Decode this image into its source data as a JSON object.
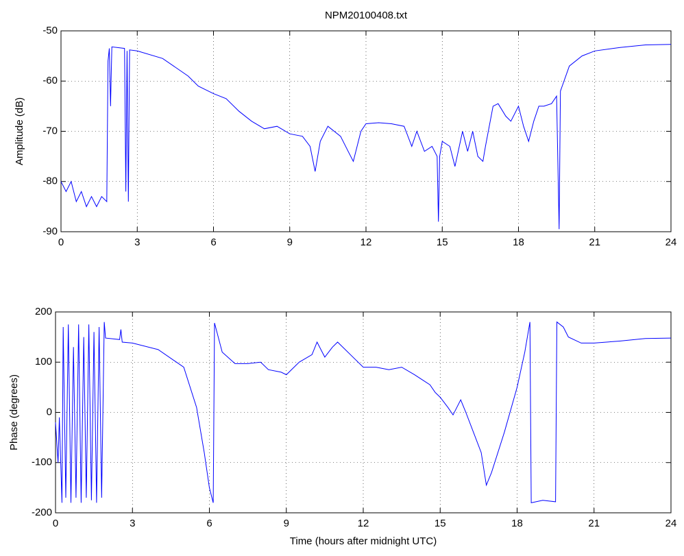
{
  "chart_data": [
    {
      "type": "line",
      "title": "NPM20100408.txt",
      "y_label": "Amplitude (dB)",
      "grid": true,
      "xlim": [
        0,
        24
      ],
      "xticks": [
        0,
        3,
        6,
        9,
        12,
        15,
        18,
        21,
        24
      ],
      "ylim": [
        -90,
        -50
      ],
      "yticks": [
        -90,
        -80,
        -70,
        -60,
        -50
      ],
      "series": [
        {
          "color": "#0000ff",
          "x": [
            0,
            0.2,
            0.4,
            0.6,
            0.8,
            1.0,
            1.2,
            1.4,
            1.6,
            1.8,
            1.85,
            1.9,
            1.95,
            2.0,
            2.2,
            2.5,
            2.55,
            2.6,
            2.65,
            2.7,
            3,
            4,
            5,
            5.4,
            6,
            6.5,
            7,
            7.5,
            8,
            8.5,
            9,
            9.5,
            9.8,
            10,
            10.2,
            10.5,
            11,
            11.3,
            11.5,
            11.8,
            12,
            12.5,
            13,
            13.5,
            13.8,
            14,
            14.3,
            14.6,
            14.8,
            14.85,
            14.9,
            15,
            15.3,
            15.5,
            15.8,
            16,
            16.2,
            16.4,
            16.6,
            16.7,
            17,
            17.2,
            17.5,
            17.7,
            18,
            18.2,
            18.4,
            18.6,
            18.8,
            19,
            19.3,
            19.5,
            19.6,
            19.65,
            20,
            20.5,
            21,
            22,
            23,
            24
          ],
          "values": [
            -80,
            -82,
            -80,
            -84,
            -82,
            -85,
            -83,
            -85,
            -83,
            -84,
            -56,
            -53.5,
            -65,
            -53.2,
            -53.3,
            -53.5,
            -82,
            -54,
            -84,
            -53.8,
            -54,
            -55.5,
            -59,
            -61,
            -62.5,
            -63.5,
            -66,
            -68,
            -69.5,
            -69,
            -70.5,
            -71,
            -73,
            -78,
            -72,
            -69,
            -71,
            -74,
            -76,
            -70,
            -68.5,
            -68.3,
            -68.5,
            -69,
            -73,
            -70,
            -74,
            -73,
            -75,
            -88,
            -75,
            -72,
            -73,
            -77,
            -70,
            -74,
            -70,
            -75,
            -76,
            -73,
            -65,
            -64.5,
            -67,
            -68,
            -65,
            -69,
            -72,
            -68,
            -65,
            -65,
            -64.5,
            -63,
            -89.5,
            -62,
            -57,
            -55,
            -54,
            -53.3,
            -52.8,
            -52.7
          ]
        }
      ]
    },
    {
      "type": "line",
      "x_label": "Time (hours after midnight UTC)",
      "y_label": "Phase (degrees)",
      "grid": true,
      "xlim": [
        0,
        24
      ],
      "xticks": [
        0,
        3,
        6,
        9,
        12,
        15,
        18,
        21,
        24
      ],
      "ylim": [
        -200,
        200
      ],
      "yticks": [
        -200,
        -100,
        0,
        100,
        200
      ],
      "series": [
        {
          "color": "#0000ff",
          "x": [
            0,
            0.1,
            0.15,
            0.25,
            0.3,
            0.4,
            0.5,
            0.6,
            0.7,
            0.8,
            0.9,
            1.0,
            1.1,
            1.2,
            1.3,
            1.4,
            1.5,
            1.6,
            1.7,
            1.8,
            1.9,
            1.95,
            2.5,
            2.55,
            2.6,
            3,
            4,
            5,
            5.5,
            5.8,
            6.0,
            6.15,
            6.2,
            6.5,
            7,
            7.5,
            8,
            8.3,
            8.8,
            9,
            9.5,
            10,
            10.2,
            10.5,
            10.8,
            11,
            11.5,
            12,
            12.5,
            13,
            13.5,
            14,
            14.3,
            14.6,
            14.8,
            15,
            15.3,
            15.5,
            15.8,
            16,
            16.3,
            16.6,
            16.8,
            17,
            17.5,
            18,
            18.3,
            18.5,
            18.55,
            19,
            19.5,
            19.55,
            19.8,
            20,
            20.5,
            21,
            22,
            23,
            24
          ],
          "values": [
            -20,
            -100,
            -10,
            -180,
            170,
            -170,
            175,
            -180,
            130,
            -170,
            175,
            -180,
            150,
            -170,
            175,
            -175,
            160,
            -180,
            170,
            -170,
            180,
            148,
            145,
            165,
            140,
            138,
            125,
            90,
            10,
            -80,
            -150,
            -180,
            178,
            120,
            97,
            97,
            100,
            85,
            80,
            75,
            100,
            115,
            140,
            110,
            130,
            140,
            115,
            90,
            90,
            85,
            90,
            75,
            65,
            55,
            40,
            30,
            10,
            -5,
            25,
            0,
            -40,
            -80,
            -145,
            -120,
            -40,
            50,
            120,
            180,
            -180,
            -175,
            -178,
            180,
            170,
            150,
            138,
            138,
            142,
            147,
            148
          ]
        }
      ]
    }
  ]
}
